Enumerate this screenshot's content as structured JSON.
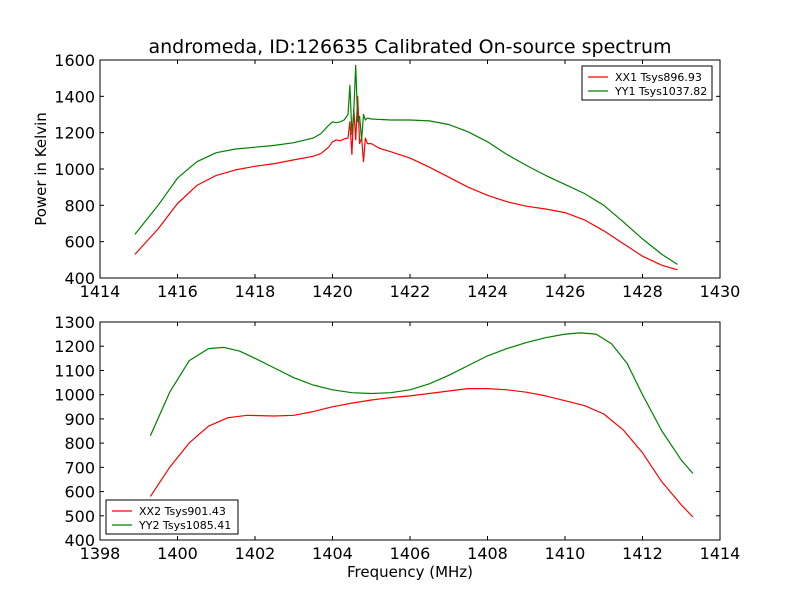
{
  "title": "andromeda, ID:126635 Calibrated On-source spectrum",
  "chart_data": [
    {
      "type": "line",
      "title": "andromeda, ID:126635 Calibrated On-source spectrum",
      "xlabel": "",
      "ylabel": "Power in Kelvin",
      "xlim": [
        1414,
        1430
      ],
      "ylim": [
        400,
        1600
      ],
      "xticks": [
        1414,
        1416,
        1418,
        1420,
        1422,
        1424,
        1426,
        1428,
        1430
      ],
      "yticks": [
        400,
        600,
        800,
        1000,
        1200,
        1400,
        1600
      ],
      "legend_position": "top-right",
      "series": [
        {
          "name": "XX1 Tsys896.93",
          "color": "#ff0000",
          "x": [
            1414.9,
            1415.5,
            1416.0,
            1416.5,
            1417.0,
            1417.5,
            1418.0,
            1418.5,
            1419.0,
            1419.5,
            1419.7,
            1419.9,
            1420.0,
            1420.1,
            1420.2,
            1420.3,
            1420.4,
            1420.45,
            1420.5,
            1420.55,
            1420.6,
            1420.65,
            1420.7,
            1420.75,
            1420.8,
            1420.85,
            1420.9,
            1421.0,
            1421.2,
            1421.5,
            1422.0,
            1422.5,
            1423.0,
            1423.5,
            1424.0,
            1424.5,
            1425.0,
            1425.5,
            1426.0,
            1426.5,
            1427.0,
            1427.5,
            1428.0,
            1428.5,
            1428.9
          ],
          "values": [
            530,
            670,
            810,
            910,
            965,
            995,
            1015,
            1030,
            1050,
            1070,
            1085,
            1120,
            1150,
            1160,
            1155,
            1165,
            1170,
            1260,
            1080,
            1330,
            1160,
            1400,
            1140,
            1170,
            1040,
            1170,
            1140,
            1140,
            1115,
            1095,
            1060,
            1010,
            955,
            900,
            855,
            820,
            795,
            780,
            760,
            720,
            660,
            590,
            520,
            470,
            445
          ]
        },
        {
          "name": "YY1 Tsys1037.82",
          "color": "#008000",
          "x": [
            1414.9,
            1415.5,
            1416.0,
            1416.5,
            1417.0,
            1417.5,
            1418.0,
            1418.5,
            1419.0,
            1419.5,
            1419.7,
            1419.9,
            1420.0,
            1420.1,
            1420.2,
            1420.3,
            1420.4,
            1420.45,
            1420.5,
            1420.55,
            1420.6,
            1420.65,
            1420.7,
            1420.75,
            1420.8,
            1420.85,
            1420.9,
            1421.0,
            1421.5,
            1422.0,
            1422.5,
            1423.0,
            1423.5,
            1424.0,
            1424.5,
            1425.0,
            1425.5,
            1426.0,
            1426.5,
            1427.0,
            1427.5,
            1428.0,
            1428.5,
            1428.9
          ],
          "values": [
            640,
            800,
            950,
            1040,
            1090,
            1110,
            1120,
            1130,
            1145,
            1170,
            1195,
            1240,
            1260,
            1255,
            1260,
            1270,
            1300,
            1460,
            1190,
            1320,
            1570,
            1260,
            1290,
            1160,
            1300,
            1270,
            1280,
            1275,
            1270,
            1270,
            1265,
            1245,
            1205,
            1150,
            1080,
            1020,
            965,
            915,
            865,
            800,
            710,
            615,
            530,
            475
          ]
        }
      ]
    },
    {
      "type": "line",
      "title": "",
      "xlabel": "Frequency (MHz)",
      "ylabel": "",
      "xlim": [
        1398,
        1414
      ],
      "ylim": [
        400,
        1300
      ],
      "xticks": [
        1398,
        1400,
        1402,
        1404,
        1406,
        1408,
        1410,
        1412,
        1414
      ],
      "yticks": [
        400,
        500,
        600,
        700,
        800,
        900,
        1000,
        1100,
        1200,
        1300
      ],
      "legend_position": "bottom-left",
      "series": [
        {
          "name": "XX2 Tsys901.43",
          "color": "#ff0000",
          "x": [
            1399.3,
            1399.8,
            1400.3,
            1400.8,
            1401.3,
            1401.8,
            1402.5,
            1403.0,
            1403.5,
            1404.0,
            1404.5,
            1405.0,
            1405.5,
            1406.0,
            1406.5,
            1407.0,
            1407.5,
            1408.0,
            1408.5,
            1409.0,
            1409.5,
            1410.0,
            1410.5,
            1411.0,
            1411.5,
            1412.0,
            1412.5,
            1413.0,
            1413.3
          ],
          "values": [
            580,
            700,
            800,
            870,
            905,
            915,
            912,
            915,
            930,
            950,
            965,
            978,
            988,
            995,
            1005,
            1015,
            1025,
            1025,
            1020,
            1010,
            995,
            975,
            955,
            920,
            855,
            760,
            640,
            545,
            495
          ]
        },
        {
          "name": "YY2 Tsys1085.41",
          "color": "#008000",
          "x": [
            1399.3,
            1399.8,
            1400.3,
            1400.8,
            1401.2,
            1401.6,
            1402.0,
            1402.5,
            1403.0,
            1403.5,
            1404.0,
            1404.5,
            1405.0,
            1405.5,
            1406.0,
            1406.5,
            1407.0,
            1407.5,
            1408.0,
            1408.5,
            1409.0,
            1409.5,
            1410.0,
            1410.4,
            1410.8,
            1411.2,
            1411.6,
            1412.0,
            1412.5,
            1413.0,
            1413.3
          ],
          "values": [
            830,
            1010,
            1140,
            1190,
            1195,
            1180,
            1150,
            1110,
            1070,
            1040,
            1020,
            1008,
            1005,
            1008,
            1020,
            1045,
            1080,
            1120,
            1160,
            1190,
            1215,
            1235,
            1250,
            1255,
            1250,
            1210,
            1130,
            1000,
            850,
            730,
            675
          ]
        }
      ]
    }
  ]
}
